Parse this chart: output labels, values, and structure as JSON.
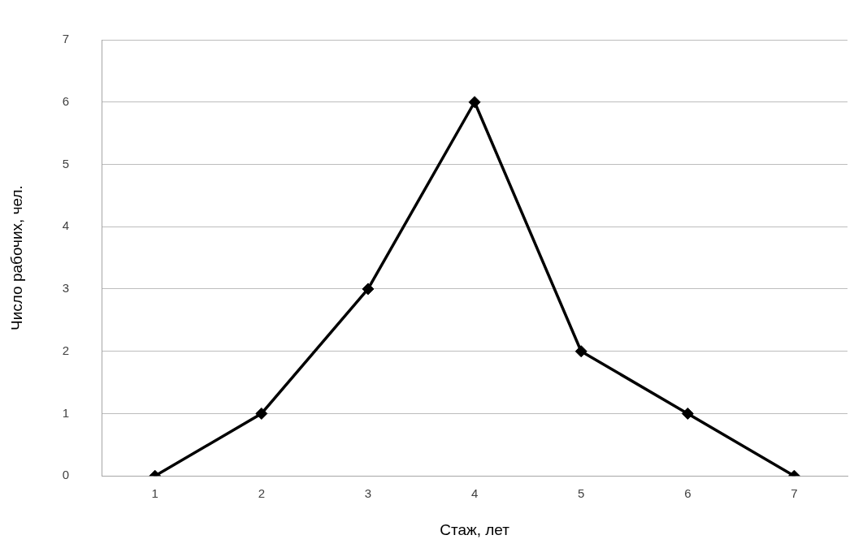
{
  "chart_data": {
    "type": "line",
    "xlabel": "Стаж, лет",
    "ylabel": "Число рабочих, чел.",
    "categories": [
      "1",
      "2",
      "3",
      "4",
      "5",
      "6",
      "7"
    ],
    "series": [
      {
        "color": "#000000",
        "values": [
          0,
          1,
          3,
          6,
          2,
          1,
          0
        ]
      }
    ],
    "ylim": [
      0,
      7
    ],
    "yticks": [
      0,
      1,
      2,
      3,
      4,
      5,
      6,
      7
    ],
    "grid": "y",
    "marker": "diamond",
    "line_style": "solid",
    "legend": false
  }
}
